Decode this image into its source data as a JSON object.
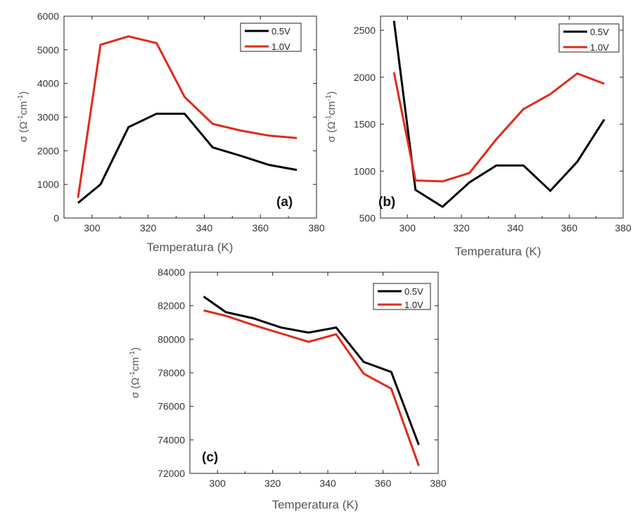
{
  "chart_data": [
    {
      "type": "line",
      "panel_label": "(a)",
      "xlabel": "Temperatura (K)",
      "ylabel": {
        "symbol": "σ (Ω",
        "sup1": "-1",
        "mid": "cm",
        "sup2": "-1",
        "close": ")"
      },
      "xlim": [
        290,
        380
      ],
      "ylim": [
        0,
        6000
      ],
      "xticks": [
        300,
        320,
        340,
        360,
        380
      ],
      "yticks": [
        0,
        1000,
        2000,
        3000,
        4000,
        5000,
        6000
      ],
      "legend_position": "top-right",
      "series": [
        {
          "name": "0.5V",
          "color": "#000000",
          "x": [
            295,
            303,
            313,
            323,
            333,
            343,
            353,
            363,
            373
          ],
          "y": [
            450,
            1000,
            2700,
            3100,
            3100,
            2100,
            1850,
            1580,
            1430
          ]
        },
        {
          "name": "1.0V",
          "color": "#e02a1b",
          "x": [
            295,
            303,
            313,
            323,
            333,
            343,
            353,
            363,
            373
          ],
          "y": [
            600,
            5150,
            5400,
            5200,
            3600,
            2800,
            2600,
            2450,
            2380
          ]
        }
      ]
    },
    {
      "type": "line",
      "panel_label": "(b)",
      "xlabel": "Temperatura (K)",
      "ylabel": {
        "symbol": "σ (Ω",
        "sup1": "-1",
        "mid": "cm",
        "sup2": "-1",
        "close": ")"
      },
      "xlim": [
        290,
        380
      ],
      "ylim": [
        500,
        2650
      ],
      "xticks": [
        300,
        320,
        340,
        360,
        380
      ],
      "yticks": [
        500,
        1000,
        1500,
        2000,
        2500
      ],
      "legend_position": "top-right",
      "series": [
        {
          "name": "0.5V",
          "color": "#000000",
          "x": [
            295,
            303,
            313,
            323,
            333,
            343,
            353,
            363,
            373
          ],
          "y": [
            2600,
            800,
            620,
            880,
            1060,
            1060,
            790,
            1100,
            1550
          ]
        },
        {
          "name": "1.0V",
          "color": "#e02a1b",
          "x": [
            295,
            303,
            313,
            323,
            333,
            343,
            353,
            363,
            373
          ],
          "y": [
            2050,
            900,
            890,
            980,
            1340,
            1660,
            1820,
            2040,
            1930
          ]
        }
      ]
    },
    {
      "type": "line",
      "panel_label": "(c)",
      "xlabel": "Temperatura (K)",
      "ylabel": {
        "symbol": "σ (Ω",
        "sup1": "-1",
        "mid": "cm",
        "sup2": "-1",
        "close": ")"
      },
      "xlim": [
        290,
        380
      ],
      "ylim": [
        72000,
        84000
      ],
      "xticks": [
        300,
        320,
        340,
        360,
        380
      ],
      "yticks": [
        72000,
        74000,
        76000,
        78000,
        80000,
        82000,
        84000
      ],
      "legend_position": "top-right",
      "series": [
        {
          "name": "0.5V",
          "color": "#000000",
          "x": [
            295,
            303,
            313,
            323,
            333,
            343,
            353,
            363,
            373
          ],
          "y": [
            82550,
            81620,
            81250,
            80700,
            80400,
            80700,
            78650,
            78050,
            73700
          ]
        },
        {
          "name": "1.0V",
          "color": "#e02a1b",
          "x": [
            295,
            303,
            313,
            323,
            333,
            343,
            353,
            363,
            373
          ],
          "y": [
            81720,
            81400,
            80850,
            80350,
            79850,
            80300,
            77950,
            77050,
            72450
          ]
        }
      ]
    }
  ]
}
